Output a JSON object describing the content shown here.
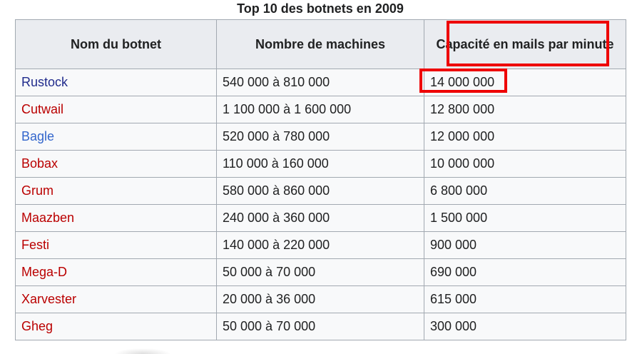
{
  "caption": "Top 10 des botnets en 2009",
  "headers": {
    "name": "Nom du botnet",
    "machines": "Nombre de machines",
    "capacity": "Capacité en mails par minute"
  },
  "rows": [
    {
      "name": "Rustock",
      "machines": "540 000 à 810 000",
      "capacity": "14 000 000",
      "link_color": "#202b8c"
    },
    {
      "name": "Cutwail",
      "machines": "1 100 000 à 1 600 000",
      "capacity": "12 800 000",
      "link_color": "#ba0000"
    },
    {
      "name": "Bagle",
      "machines": "520 000 à 780 000",
      "capacity": "12 000 000",
      "link_color": "#3366cc"
    },
    {
      "name": "Bobax",
      "machines": "110 000 à 160 000",
      "capacity": "10 000 000",
      "link_color": "#ba0000"
    },
    {
      "name": "Grum",
      "machines": "580 000 à 860 000",
      "capacity": "6 800 000",
      "link_color": "#ba0000"
    },
    {
      "name": "Maazben",
      "machines": "240 000 à 360 000",
      "capacity": "1 500 000",
      "link_color": "#ba0000"
    },
    {
      "name": "Festi",
      "machines": "140 000 à 220 000",
      "capacity": "900 000",
      "link_color": "#ba0000"
    },
    {
      "name": "Mega-D",
      "machines": "50 000 à 70 000",
      "capacity": "690 000",
      "link_color": "#ba0000"
    },
    {
      "name": "Xarvester",
      "machines": "20 000 à 36 000",
      "capacity": "615 000",
      "link_color": "#ba0000"
    },
    {
      "name": "Gheg",
      "machines": "50 000 à 70 000",
      "capacity": "300 000",
      "link_color": "#ba0000"
    }
  ],
  "highlight_color": "#ee0000"
}
